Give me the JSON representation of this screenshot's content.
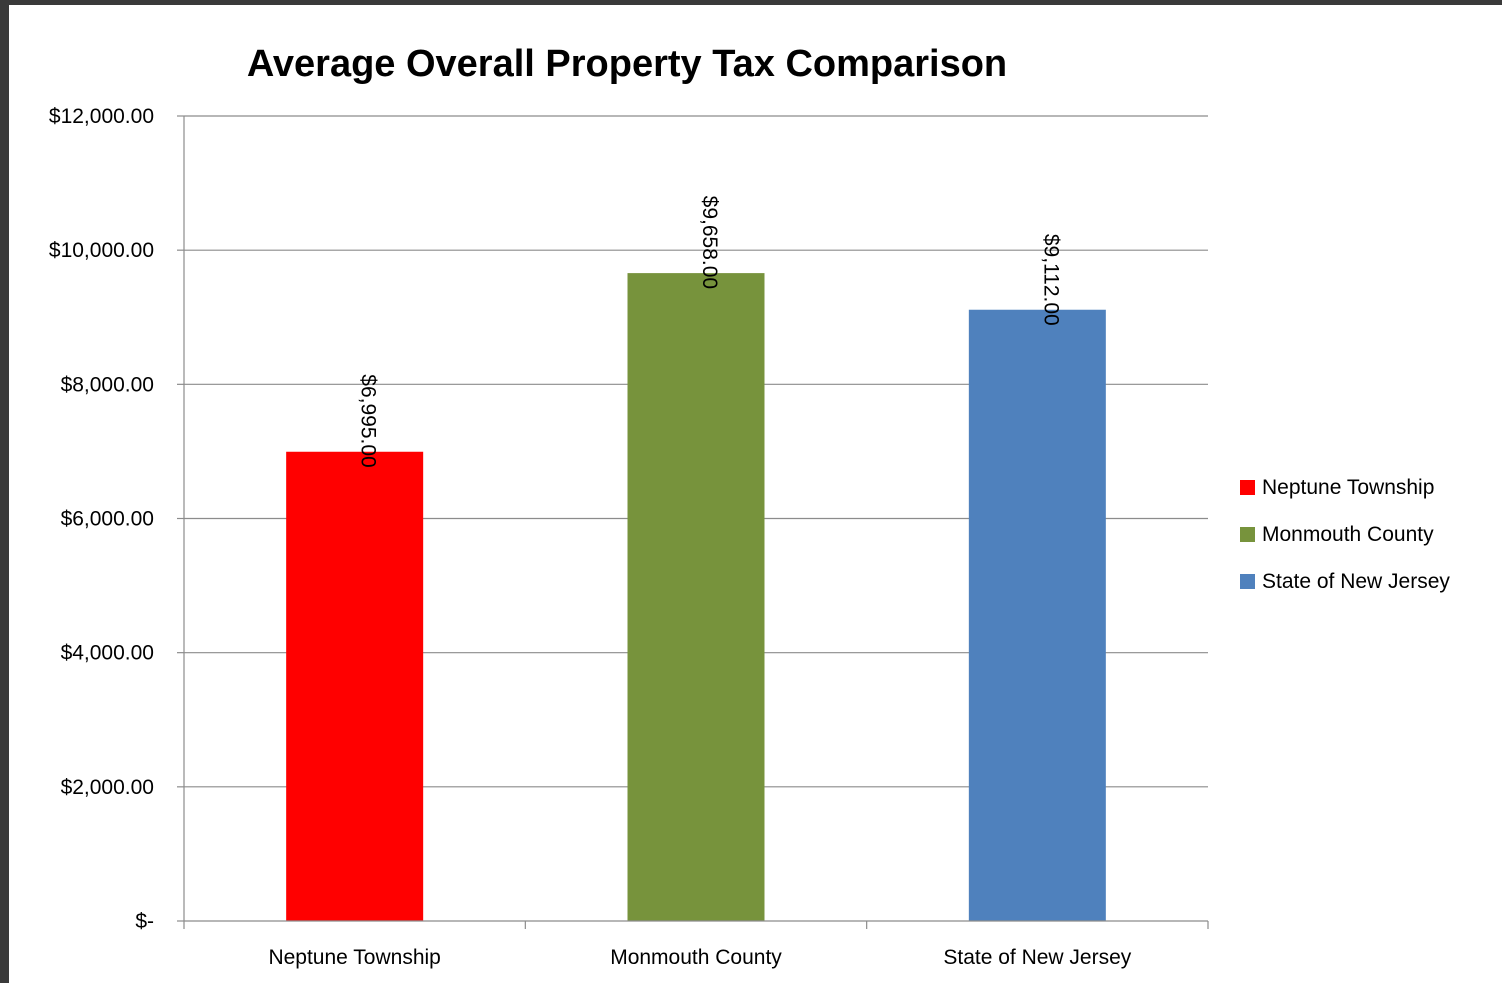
{
  "chart_data": {
    "type": "bar",
    "title": "Average Overall Property Tax Comparison",
    "xlabel": "",
    "ylabel": "",
    "categories": [
      "Neptune Township",
      "Monmouth County",
      "State of New Jersey"
    ],
    "values": [
      6995,
      9658,
      9112
    ],
    "data_labels": [
      "$6,995.00",
      "$9,658.00",
      "$9,112.00"
    ],
    "colors": [
      "#ff0000",
      "#77933c",
      "#4f81bd"
    ],
    "ylim": [
      0,
      12000
    ],
    "y_ticks": [
      0,
      2000,
      4000,
      6000,
      8000,
      10000,
      12000
    ],
    "y_tick_labels": [
      "$-",
      "$2,000.00",
      "$4,000.00",
      "$6,000.00",
      "$8,000.00",
      "$10,000.00",
      "$12,000.00"
    ],
    "grid": true,
    "legend": {
      "position": "right",
      "entries": [
        "Neptune Township",
        "Monmouth County",
        "State of New Jersey"
      ]
    }
  }
}
